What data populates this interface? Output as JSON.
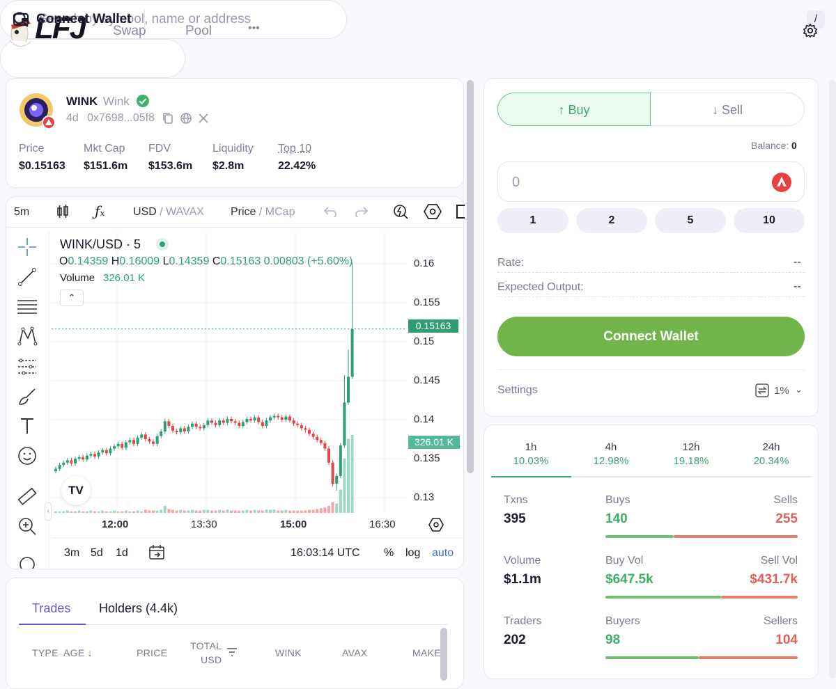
{
  "header": {
    "logo_text": "LFJ",
    "nav": [
      {
        "label": "Swap"
      },
      {
        "label": "Pool"
      },
      {
        "label": "•••"
      }
    ],
    "search_placeholder": "Search by symbol, name or address",
    "search_shortcut": "/",
    "connect_wallet": "Connect Wallet"
  },
  "token": {
    "symbol": "WINK",
    "name": "Wink",
    "age": "4d",
    "address": "0x7698...05f8",
    "stats": [
      {
        "label": "Price",
        "value": "$0.15163"
      },
      {
        "label": "Mkt Cap",
        "value": "$151.6m"
      },
      {
        "label": "FDV",
        "value": "$153.6m"
      },
      {
        "label": "Liquidity",
        "value": "$2.8m"
      },
      {
        "label": "Top 10",
        "value": "22.42%"
      }
    ]
  },
  "chart_toolbar": {
    "interval": "5m",
    "quote_a": "USD",
    "quote_b": "WAVAX",
    "mode_a": "Price",
    "mode_b": "MCap",
    "sep": " / "
  },
  "chart_data": {
    "type": "candlestick",
    "pair": "WINK/USD · 5",
    "ohlc": {
      "o_label": "O",
      "o": "0.14359",
      "h_label": "H",
      "h": "0.16009",
      "l_label": "L",
      "l": "0.14359",
      "c_label": "C",
      "c": "0.15163",
      "change": "0.00803 (+5.60%)"
    },
    "volume_label": "Volume",
    "volume_value": "326.01 K",
    "y_ticks": [
      "0.16",
      "0.155",
      "0.15",
      "0.145",
      "0.14",
      "0.135",
      "0.13"
    ],
    "y_tick_values": [
      0.16,
      0.155,
      0.15,
      0.145,
      0.14,
      0.135,
      0.13
    ],
    "ylim": [
      0.1285,
      0.1615
    ],
    "x_ticks": [
      "12:00",
      "13:30",
      "15:00",
      "16:30"
    ],
    "price_badge": "0.15163",
    "price_badge_value": 0.15163,
    "volume_badge": "326.01 K",
    "closes": [
      0.1337,
      0.1342,
      0.1345,
      0.1348,
      0.1344,
      0.135,
      0.1352,
      0.1349,
      0.1354,
      0.1356,
      0.1353,
      0.1358,
      0.1361,
      0.1357,
      0.1363,
      0.1366,
      0.1369,
      0.1364,
      0.1371,
      0.1374,
      0.1369,
      0.1377,
      0.1381,
      0.1375,
      0.1372,
      0.1369,
      0.1379,
      0.1385,
      0.1398,
      0.1392,
      0.1386,
      0.1384,
      0.1389,
      0.1385,
      0.1391,
      0.1395,
      0.1391,
      0.1389,
      0.1393,
      0.1399,
      0.1396,
      0.1393,
      0.1399,
      0.1396,
      0.1401,
      0.1398,
      0.1396,
      0.1392,
      0.1397,
      0.1401,
      0.1399,
      0.1403,
      0.1397,
      0.1392,
      0.1399,
      0.1403,
      0.1405,
      0.1403,
      0.14,
      0.1404,
      0.1399,
      0.1395,
      0.1393,
      0.1389,
      0.1387,
      0.1382,
      0.1378,
      0.1374,
      0.137,
      0.1363,
      0.1345,
      0.1318,
      0.1328,
      0.1367,
      0.1422,
      0.1455,
      0.1516
    ],
    "volumes": [
      2,
      2,
      2,
      3,
      2,
      2,
      3,
      2,
      2,
      3,
      2,
      2,
      3,
      2,
      2,
      3,
      2,
      2,
      3,
      2,
      2,
      3,
      2,
      4,
      3,
      3,
      3,
      4,
      9,
      5,
      4,
      3,
      4,
      3,
      3,
      4,
      3,
      3,
      4,
      4,
      3,
      3,
      4,
      3,
      4,
      3,
      3,
      3,
      3,
      4,
      3,
      4,
      3,
      3,
      4,
      4,
      4,
      3,
      3,
      4,
      3,
      3,
      3,
      3,
      3,
      4,
      4,
      5,
      6,
      7,
      9,
      14,
      12,
      30,
      70,
      95,
      100
    ],
    "range_buttons": [
      "3m",
      "5d",
      "1d"
    ],
    "time_utc": "16:03:14 UTC",
    "scale_opts": [
      "%",
      "log",
      "auto"
    ]
  },
  "trade": {
    "buy": "Buy",
    "sell": "Sell",
    "balance_label": "Balance:",
    "balance_value": "0",
    "amount_value": "0",
    "presets": [
      "1",
      "2",
      "5",
      "10"
    ],
    "rate_label": "Rate:",
    "rate_value": "--",
    "output_label": "Expected Output:",
    "output_value": "--",
    "connect_wallet": "Connect Wallet",
    "settings_label": "Settings",
    "slippage": "1%"
  },
  "stats_panel": {
    "timeframes": [
      {
        "label": "1h",
        "pct": "10.03%"
      },
      {
        "label": "4h",
        "pct": "12.98%"
      },
      {
        "label": "12h",
        "pct": "19.18%"
      },
      {
        "label": "24h",
        "pct": "20.34%"
      }
    ],
    "rows": [
      {
        "l1": "Txns",
        "v1": "395",
        "l2": "Buys",
        "v2": "140",
        "l3": "Sells",
        "v3": "255",
        "buy_share": 0.354
      },
      {
        "l1": "Volume",
        "v1": "$1.1m",
        "l2": "Buy Vol",
        "v2": "$647.5k",
        "l3": "Sell Vol",
        "v3": "$431.7k",
        "buy_share": 0.6
      },
      {
        "l1": "Traders",
        "v1": "202",
        "l2": "Buyers",
        "v2": "98",
        "l3": "Sellers",
        "v3": "104",
        "buy_share": 0.485
      }
    ]
  },
  "bottom": {
    "tabs": [
      {
        "label": "Trades"
      },
      {
        "label": "Holders (4.4k)"
      }
    ],
    "columns": [
      "TYPE",
      "AGE ↓",
      "PRICE",
      "TOTAL",
      "USD",
      "WINK",
      "AVAX",
      "MAKER"
    ]
  },
  "colors": {
    "green": "#2f9e74",
    "red": "#e0625b",
    "accent": "#6a5cd6",
    "button_green": "#71b54a"
  }
}
